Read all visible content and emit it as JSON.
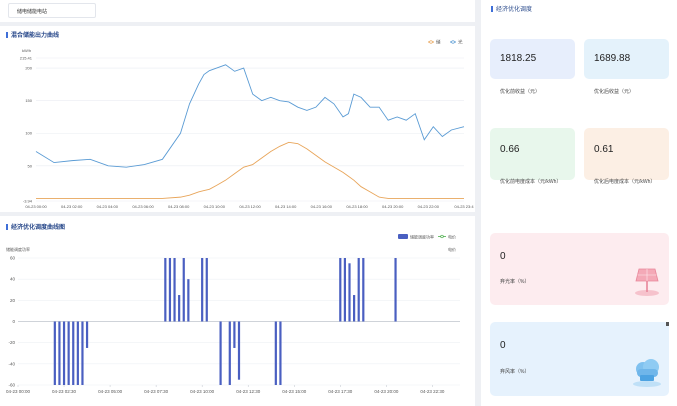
{
  "site_select": {
    "value": "储电储能电站"
  },
  "chart1": {
    "title": "混合储能出力曲线",
    "legend": [
      "储",
      "光"
    ],
    "colors": {
      "series1": "#e8a55a",
      "series2": "#5a9bd4"
    },
    "chart_data": {
      "type": "line",
      "ylabel": "kW/h",
      "y_ticks": [
        "215.41",
        "200",
        "150",
        "100",
        "50",
        "-3.94"
      ],
      "ylim": [
        -3.94,
        215.41
      ],
      "x_ticks": [
        "04-23 00:00",
        "04-23 02:00",
        "04-23 04:00",
        "04-23 06:00",
        "04-23 08:00",
        "04-23 10:00",
        "04-23 12:00",
        "04-23 14:00",
        "04-23 16:00",
        "04-23 18:00",
        "04-23 20:00",
        "04-23 22:00",
        "04-23 23:4"
      ],
      "x_hours": [
        0,
        1,
        2,
        3,
        4,
        5,
        6,
        7,
        8,
        8.5,
        9,
        9.3,
        9.6,
        10,
        10.5,
        11,
        11.5,
        12,
        12.5,
        13,
        13.5,
        14,
        14.5,
        15,
        15.5,
        16,
        16.5,
        17,
        17.3,
        17.6,
        18,
        18.5,
        19,
        19.5,
        20,
        20.5,
        21,
        21.5,
        22,
        22.5,
        23,
        23.7
      ],
      "series": [
        {
          "name": "储",
          "values": [
            0,
            0,
            0,
            0,
            0,
            0,
            0,
            0,
            2,
            5,
            10,
            12,
            14,
            20,
            28,
            38,
            48,
            52,
            62,
            72,
            80,
            86,
            84,
            76,
            66,
            56,
            48,
            40,
            34,
            28,
            18,
            10,
            2,
            0,
            0,
            0,
            0,
            0,
            0,
            0,
            0,
            0
          ]
        },
        {
          "name": "光",
          "values": [
            72,
            55,
            58,
            60,
            50,
            48,
            52,
            60,
            100,
            145,
            175,
            190,
            196,
            200,
            205,
            195,
            200,
            160,
            150,
            155,
            150,
            148,
            140,
            135,
            140,
            155,
            145,
            125,
            130,
            160,
            155,
            140,
            140,
            120,
            125,
            120,
            130,
            90,
            110,
            95,
            105,
            110
          ]
        }
      ]
    }
  },
  "chart2": {
    "title": "经济优化调度曲线图",
    "legend": [
      "储能调度功率",
      "电价"
    ],
    "colors": {
      "bar": "#4a5fc1",
      "price": "#4cae4c"
    },
    "chart_data": {
      "type": "bar",
      "ylabel": "储能调度功率",
      "y_ticks": [
        "60",
        "40",
        "20",
        "0",
        "-20",
        "-40",
        "-60"
      ],
      "ylim": [
        -60,
        60
      ],
      "x_ticks": [
        "04-23 00:00",
        "04-23 02:30",
        "04-23 05:00",
        "04-23 07:30",
        "04-23 10:00",
        "04-23 12:30",
        "04-23 15:00",
        "04-23 17:30",
        "04-23 20:00",
        "04-23 22:30"
      ],
      "bar_hours": [
        2.0,
        2.25,
        2.5,
        2.75,
        3.0,
        3.25,
        3.5,
        3.75,
        8.0,
        8.25,
        8.5,
        8.75,
        9.0,
        9.25,
        10.0,
        10.25,
        11.0,
        11.5,
        11.75,
        12.0,
        14.0,
        14.25,
        17.5,
        17.75,
        18.0,
        18.25,
        18.5,
        18.75,
        20.5
      ],
      "values": [
        -60,
        -60,
        -60,
        -60,
        -60,
        -60,
        -60,
        -25,
        60,
        60,
        60,
        25,
        60,
        40,
        60,
        60,
        -60,
        -60,
        -25,
        -55,
        -60,
        -60,
        60,
        60,
        55,
        25,
        60,
        60,
        60
      ]
    }
  },
  "right_panel": {
    "title": "经济优化调度",
    "cards": [
      {
        "value": "1818.25",
        "label": "优化前收益（元）"
      },
      {
        "value": "1689.88",
        "label": "优化后收益（元）"
      },
      {
        "value": "0.66",
        "label": "优化前电度成本（元/kWh）"
      },
      {
        "value": "0.61",
        "label": "优化后电度成本（元/kWh）"
      },
      {
        "value": "0",
        "label": "弃光率（%）"
      },
      {
        "value": "0",
        "label": "弃风率（%）"
      }
    ]
  }
}
